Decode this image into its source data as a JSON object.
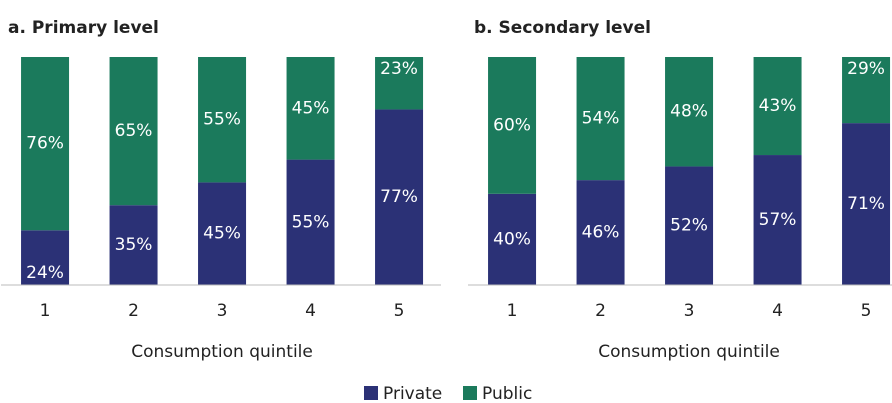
{
  "chart_data": [
    {
      "type": "stacked-bar",
      "title": "a. Primary level",
      "x_label": "Consumption quintile",
      "categories": [
        "1",
        "2",
        "3",
        "4",
        "5"
      ],
      "ylim": [
        0,
        100
      ],
      "series": [
        {
          "name": "Private",
          "color": "#2b3176",
          "values": [
            24,
            35,
            45,
            55,
            77
          ],
          "value_labels": [
            "24%",
            "35%",
            "45%",
            "55%",
            "77%"
          ]
        },
        {
          "name": "Public",
          "color": "#1b7a5c",
          "values": [
            76,
            65,
            55,
            45,
            23
          ],
          "value_labels": [
            "76%",
            "65%",
            "55%",
            "45%",
            "23%"
          ]
        }
      ]
    },
    {
      "type": "stacked-bar",
      "title": "b. Secondary level",
      "x_label": "Consumption quintile",
      "categories": [
        "1",
        "2",
        "3",
        "4",
        "5"
      ],
      "ylim": [
        0,
        100
      ],
      "series": [
        {
          "name": "Private",
          "color": "#2b3176",
          "values": [
            40,
            46,
            52,
            57,
            71
          ],
          "value_labels": [
            "40%",
            "46%",
            "52%",
            "57%",
            "71%"
          ]
        },
        {
          "name": "Public",
          "color": "#1b7a5c",
          "values": [
            60,
            54,
            48,
            43,
            29
          ],
          "value_labels": [
            "60%",
            "54%",
            "48%",
            "43%",
            "29%"
          ]
        }
      ]
    }
  ]
}
